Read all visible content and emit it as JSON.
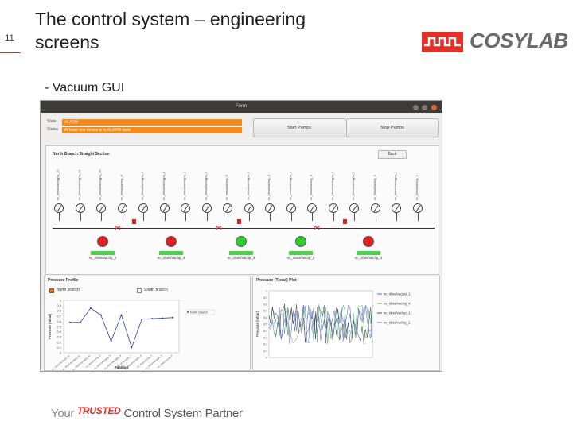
{
  "slide": {
    "number": "11",
    "title_line1": "The control system – engineering",
    "title_line2": "screens",
    "bullet": "- Vacuum GUI",
    "logo_text": "COSYLAB",
    "footer_pre": "Your",
    "footer_trusted": "TRUSTED",
    "footer_post": "Control System Partner",
    "brand_color": "#e0312b"
  },
  "window": {
    "title": "Form",
    "state_label": "State",
    "state_value": "ALARM",
    "status_label": "Status",
    "status_value": "At least one device is in ALARM state.",
    "start_button": "Start Pumps",
    "stop_button": "Stop Pumps",
    "back_button": "Back",
    "section_title": "North Branch Straight Section",
    "gauges": [
      "vc_nbss/vac/vgpu_12",
      "vc_nbss/vac/vgpu_11",
      "vc_nbss/vac/vgpu_10",
      "vc_nbss/vac/vg_6",
      "vc_nbss/vac/vgpu_9",
      "vc_nbss/vac/vgpu_8",
      "vc_nbss/vac/vgpu_7",
      "vc_nbss/vac/vgpu_6",
      "vc_nbss/vac/vg_5",
      "vc_nbss/vac/vgpu_5",
      "vc_nbss/vac/vg_4",
      "vc_nbss/vac/vgpu_4",
      "vc_nbss/vac/vg_3",
      "vc_nbss/vac/vgpu_3",
      "vc_nbss/vac/vgpu_2",
      "vc_nbss/vac/vg_2",
      "vc_nbss/vac/vgpu_1",
      "vc_nbss/vac/vg_1"
    ],
    "pumps": [
      {
        "name": "nc_nbss/vac/ip_5",
        "status": "",
        "color": "red"
      },
      {
        "name": "nc_nbss/vac/ip_4",
        "status": "",
        "color": "red"
      },
      {
        "name": "nc_nbss/vac/ip_3",
        "status": "",
        "color": "green"
      },
      {
        "name": "nc_nbss/vac/ip_2",
        "status": "",
        "color": "green"
      },
      {
        "name": "nc_nbss/vac/ip_1",
        "status": "",
        "color": "red"
      }
    ],
    "profile": {
      "title": "Pressure Profile",
      "north": "North branch",
      "south": "South branch",
      "ylabel": "Pressure [mbar]",
      "xlabel": "Position",
      "legend": "North branch",
      "yticks": [
        "1",
        "0.9",
        "0.8",
        "0.7",
        "0.6",
        "0.5",
        "0.4",
        "0.3",
        "0.2",
        "0.1",
        "0"
      ],
      "values": [
        0.58,
        0.58,
        0.85,
        0.72,
        0.22,
        0.72,
        0.1,
        0.64,
        0.65,
        0.66,
        0.67
      ]
    },
    "trend": {
      "title": "Pressure (Trend) Plot",
      "ylabel": "Pressure [mbar]",
      "yticks": [
        "1",
        "0.9",
        "0.8",
        "0.7",
        "0.6",
        "0.5",
        "0.4",
        "0.3",
        "0.2",
        "0.1",
        "0"
      ],
      "series": [
        {
          "name": "nc_nbss/vac/vg_1",
          "color": "#2c4fb5"
        },
        {
          "name": "nc_nbss/vac/vg_4",
          "color": "#2aa845"
        },
        {
          "name": "nc_sbss/vac/vg_1",
          "color": "#2a2a2a"
        },
        {
          "name": "nc_sbss/vac/vg_1",
          "color": "#4b4b9c"
        }
      ]
    }
  }
}
